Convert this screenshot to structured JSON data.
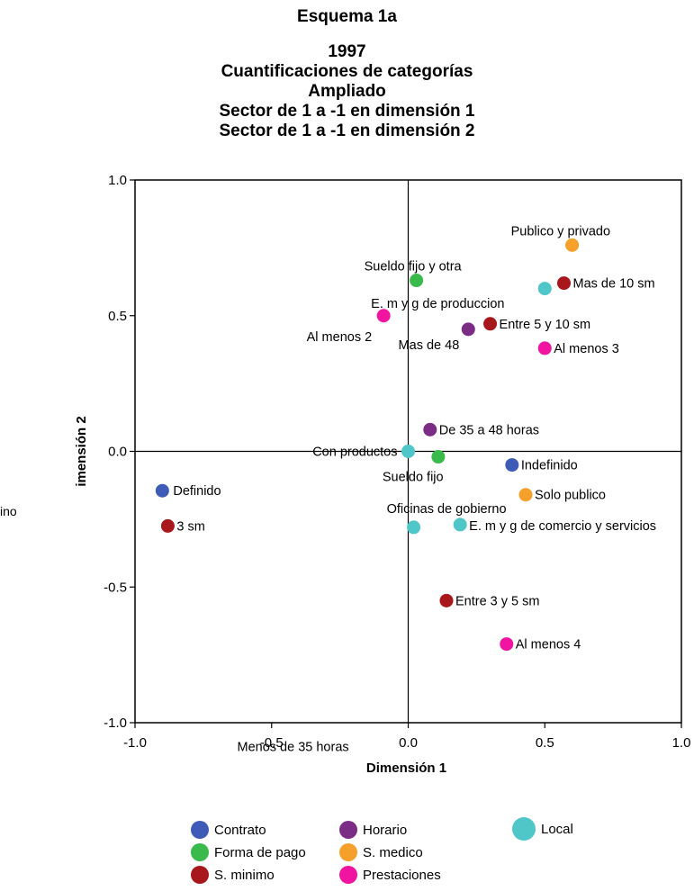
{
  "page": {
    "title": "Esquema 1a",
    "subtitle_lines": [
      "1997",
      "Cuantificaciones de categorías",
      "Ampliado",
      "Sector de 1 a -1 en dimensión 1",
      "Sector de  1 a -1 en dimensión 2"
    ],
    "stray_left_text": "ino"
  },
  "chart_data": {
    "type": "scatter",
    "title": "Esquema 1a",
    "xlabel": "Dimensión 1",
    "ylabel": "imensión 2",
    "xlim": [
      -1.0,
      1.0
    ],
    "ylim": [
      -1.0,
      1.0
    ],
    "x_ticks": [
      "-1.0",
      "-0.5",
      "0.0",
      "0.5",
      "1.0"
    ],
    "y_ticks": [
      "-1.0",
      "-0.5",
      "0.0",
      "0.5",
      "1.0"
    ],
    "grid": false,
    "reference_lines": {
      "x": 0,
      "y": 0
    },
    "legend_position": "bottom",
    "series": [
      {
        "name": "Contrato",
        "color": "#3f5bb8",
        "points": [
          {
            "label": "Indefinido",
            "x": 0.38,
            "y": -0.05
          },
          {
            "label": "Definido",
            "x": -0.9,
            "y": -0.145
          }
        ]
      },
      {
        "name": "Horario",
        "color": "#7b2d85",
        "points": [
          {
            "label": "Mas de 48",
            "x": 0.22,
            "y": 0.45
          },
          {
            "label": "De 35 a 48 horas",
            "x": 0.08,
            "y": 0.08
          },
          {
            "label": "Menos de 35 horas",
            "x": null,
            "y": null
          }
        ]
      },
      {
        "name": "Local",
        "color": "#4fc6c8",
        "points": [
          {
            "label": "",
            "x": 0.5,
            "y": 0.6
          },
          {
            "label": "Con productos",
            "x": 0.0,
            "y": 0.0
          },
          {
            "label": "E. m y g de comercio y servicios",
            "x": 0.19,
            "y": -0.27
          },
          {
            "label": "Oficinas de gobierno",
            "x": 0.02,
            "y": -0.28
          }
        ]
      },
      {
        "name": "Forma de pago",
        "color": "#3aba4a",
        "points": [
          {
            "label": "Sueldo fijo y otra",
            "x": 0.03,
            "y": 0.63
          },
          {
            "label": "Sueldo fijo",
            "x": 0.11,
            "y": -0.02
          }
        ]
      },
      {
        "name": "S. medico",
        "color": "#f5a02a",
        "points": [
          {
            "label": "Publico y privado",
            "x": 0.6,
            "y": 0.76
          },
          {
            "label": "Solo publico",
            "x": 0.43,
            "y": -0.16
          }
        ]
      },
      {
        "name": "S. minimo",
        "color": "#a8171c",
        "points": [
          {
            "label": "Mas de 10 sm",
            "x": 0.57,
            "y": 0.62
          },
          {
            "label": "Entre 5 y 10 sm",
            "x": 0.3,
            "y": 0.47
          },
          {
            "label": "3 sm",
            "x": -0.88,
            "y": -0.275
          },
          {
            "label": "Entre 3 y 5 sm",
            "x": 0.14,
            "y": -0.55
          }
        ]
      },
      {
        "name": "Prestaciones",
        "color": "#f014a0",
        "points": [
          {
            "label": "E. m y g de produccion",
            "x": -0.09,
            "y": 0.5
          },
          {
            "label": "Al menos 2",
            "x": -0.09,
            "y": 0.5
          },
          {
            "label": "Al menos 3",
            "x": 0.5,
            "y": 0.38
          },
          {
            "label": "Al menos 4",
            "x": 0.36,
            "y": -0.71
          }
        ]
      }
    ],
    "legend_order": [
      "Contrato",
      "Horario",
      "Local",
      "Forma de pago",
      "S. medico",
      "S. minimo",
      "Prestaciones"
    ]
  }
}
